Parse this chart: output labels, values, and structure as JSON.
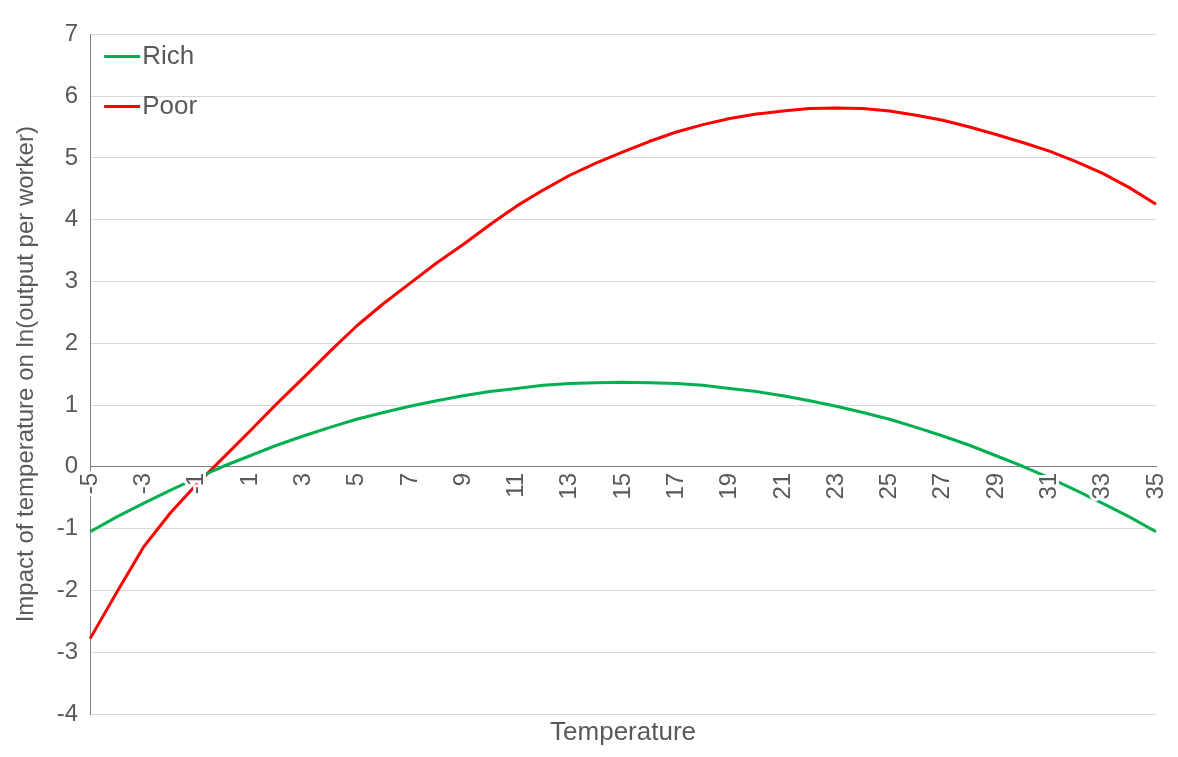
{
  "chart_data": {
    "type": "line",
    "xlabel": "Temperature",
    "ylabel": "Impact of temperature on ln(output per worker)",
    "categories": [
      "-5",
      null,
      "-3",
      null,
      "-1",
      null,
      "1",
      null,
      "3",
      null,
      "5",
      null,
      "7",
      null,
      "9",
      null,
      "11",
      null,
      "13",
      null,
      "15",
      null,
      "17",
      null,
      "19",
      null,
      "21",
      null,
      "23",
      null,
      "25",
      null,
      "27",
      null,
      "29",
      null,
      "31",
      null,
      "33",
      null,
      "35"
    ],
    "series": [
      {
        "name": "Rich",
        "color": "#00b050",
        "values": [
          -1.05,
          -0.81,
          -0.59,
          -0.38,
          -0.18,
          0.01,
          0.18,
          0.35,
          0.5,
          0.64,
          0.77,
          0.88,
          0.98,
          1.07,
          1.15,
          1.22,
          1.27,
          1.32,
          1.35,
          1.36,
          1.37,
          1.36,
          1.35,
          1.32,
          1.27,
          1.22,
          1.15,
          1.07,
          0.98,
          0.88,
          0.77,
          0.64,
          0.5,
          0.35,
          0.18,
          0.01,
          -0.18,
          -0.38,
          -0.59,
          -0.81,
          -1.05
        ]
      },
      {
        "name": "Poor",
        "color": "#ff0000",
        "values": [
          -2.78,
          -2.03,
          -1.3,
          -0.75,
          -0.28,
          0.15,
          0.58,
          1.02,
          1.44,
          1.87,
          2.28,
          2.64,
          2.97,
          3.3,
          3.6,
          3.92,
          4.22,
          4.48,
          4.72,
          4.92,
          5.1,
          5.27,
          5.42,
          5.54,
          5.64,
          5.71,
          5.76,
          5.8,
          5.81,
          5.8,
          5.76,
          5.69,
          5.61,
          5.5,
          5.38,
          5.25,
          5.11,
          4.94,
          4.75,
          4.52,
          4.25
        ]
      }
    ],
    "ylim": [
      -4,
      7
    ],
    "yticks": [
      -4,
      -3,
      -2,
      -1,
      0,
      1,
      2,
      3,
      4,
      5,
      6,
      7
    ],
    "grid": "y",
    "legend": "top left",
    "marker": "none",
    "line_style": "solid"
  }
}
